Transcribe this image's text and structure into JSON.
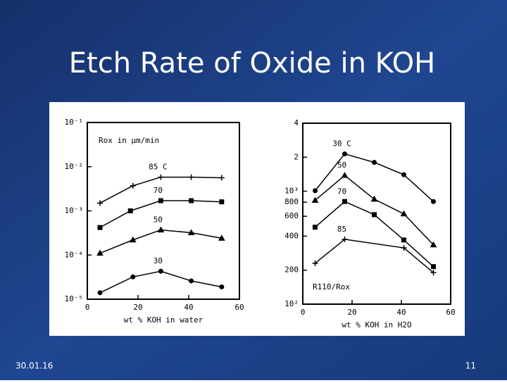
{
  "title": "Etch Rate of Oxide in KOH",
  "footer": {
    "date": "30.01.16",
    "page": "11"
  },
  "chart_data": [
    {
      "type": "line",
      "log_y": true,
      "annotation": "Rox in µm/min",
      "xlabel": "wt % KOH in water",
      "xlim": [
        0,
        60
      ],
      "xticks": [
        0,
        20,
        40,
        60
      ],
      "ylim": [
        1e-05,
        0.1
      ],
      "yticks": [
        {
          "value": 1e-05,
          "label": "10⁻⁵"
        },
        {
          "value": 0.0001,
          "label": "10⁻⁴"
        },
        {
          "value": 0.001,
          "label": "10⁻³"
        },
        {
          "value": 0.01,
          "label": "10⁻²"
        },
        {
          "value": 0.1,
          "label": "10⁻¹"
        }
      ],
      "series": [
        {
          "name": "85 C",
          "color": "#000000",
          "marker": "plus",
          "x": [
            5,
            18,
            29,
            41,
            53
          ],
          "values": [
            0.0015,
            0.0037,
            0.0058,
            0.0058,
            0.0056
          ]
        },
        {
          "name": "70",
          "color": "#000000",
          "marker": "square",
          "x": [
            5,
            17,
            29,
            41,
            53
          ],
          "values": [
            0.00042,
            0.001,
            0.0017,
            0.0017,
            0.0016
          ]
        },
        {
          "name": "50",
          "color": "#000000",
          "marker": "triangle",
          "x": [
            5,
            18,
            29,
            41,
            53
          ],
          "values": [
            0.00011,
            0.00022,
            0.00037,
            0.00032,
            0.00024
          ]
        },
        {
          "name": "30",
          "color": "#000000",
          "marker": "circle",
          "x": [
            5,
            18,
            29,
            41,
            53
          ],
          "values": [
            1.4e-05,
            3.2e-05,
            4.3e-05,
            2.6e-05,
            1.9e-05
          ]
        }
      ]
    },
    {
      "type": "line",
      "log_y": true,
      "annotation": "R110/Rox",
      "xlabel": "wt % KOH in H2O",
      "xlim": [
        0,
        60
      ],
      "xticks": [
        0,
        20,
        40,
        60
      ],
      "ylim": [
        100,
        4000
      ],
      "yticks": [
        {
          "value": 100,
          "label": "10²"
        },
        200,
        400,
        600,
        800,
        {
          "value": 1000,
          "label": "10³"
        },
        {
          "value": 2000,
          "label": "2"
        },
        {
          "value": 4000,
          "label": "4"
        }
      ],
      "series": [
        {
          "name": "30 C",
          "color": "#000000",
          "marker": "circle",
          "x": [
            5,
            17,
            29,
            41,
            53
          ],
          "values": [
            1010,
            2140,
            1800,
            1400,
            810
          ]
        },
        {
          "name": "50",
          "color": "#000000",
          "marker": "triangle",
          "x": [
            5,
            17,
            29,
            41,
            53
          ],
          "values": [
            830,
            1380,
            850,
            630,
            335
          ]
        },
        {
          "name": "70",
          "color": "#000000",
          "marker": "square",
          "x": [
            5,
            17,
            29,
            41,
            53
          ],
          "values": [
            480,
            810,
            620,
            370,
            215
          ]
        },
        {
          "name": "85",
          "color": "#000000",
          "marker": "plus",
          "x": [
            5,
            17,
            41,
            53
          ],
          "values": [
            230,
            375,
            315,
            190
          ]
        }
      ]
    }
  ]
}
